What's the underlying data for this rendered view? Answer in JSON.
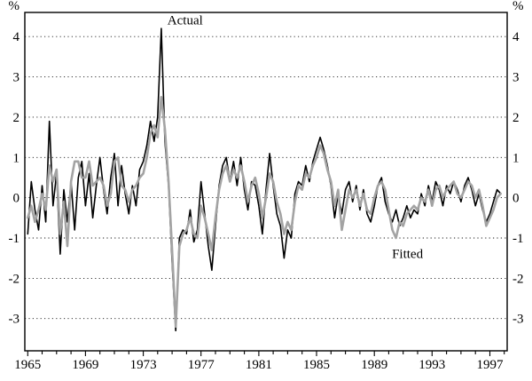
{
  "figure": {
    "y_unit_label_left": "%",
    "y_unit_label_right": "%"
  },
  "chart_data": {
    "type": "line",
    "title": "",
    "xlabel": "",
    "ylabel": "%",
    "y_unit_label": "%",
    "xlim": [
      1964.8,
      1998.2
    ],
    "ylim": [
      -3.8,
      4.6
    ],
    "grid": "dotted-horizontal",
    "legend_position": "inline-annotations",
    "y_gridlines": [
      4,
      3,
      2,
      1,
      0,
      -1,
      -2,
      -3
    ],
    "y_tick_labels": [
      "4",
      "3",
      "2",
      "1",
      "0",
      "-1",
      "-2",
      "-3"
    ],
    "x_tick_years": [
      1965,
      1969,
      1973,
      1977,
      1981,
      1985,
      1989,
      1993,
      1997
    ],
    "x_minor_tick_start": 1965,
    "x_minor_tick_end": 1998,
    "x_start": 1965.0,
    "x_step": 0.25,
    "annotations": [
      {
        "text": "Actual",
        "x": 1975.9,
        "y": 4.3
      },
      {
        "text": "Fitted",
        "x": 1991.3,
        "y": -1.5
      }
    ],
    "series": [
      {
        "name": "Actual",
        "color": "#000000",
        "width": 1.6,
        "values": [
          -0.9,
          0.4,
          -0.3,
          -0.8,
          0.3,
          -0.6,
          1.9,
          -0.2,
          0.6,
          -1.4,
          0.2,
          -0.6,
          0.4,
          -0.8,
          0.5,
          0.9,
          -0.2,
          0.6,
          -0.5,
          0.3,
          1.0,
          0.2,
          -0.4,
          0.5,
          1.1,
          -0.2,
          0.8,
          0.1,
          -0.4,
          0.3,
          -0.2,
          0.7,
          0.9,
          1.3,
          1.9,
          1.4,
          2.0,
          4.2,
          1.4,
          0.3,
          -1.6,
          -3.3,
          -1.0,
          -0.8,
          -0.9,
          -0.3,
          -1.1,
          -0.8,
          0.4,
          -0.4,
          -1.2,
          -1.8,
          -0.7,
          0.3,
          0.8,
          1.0,
          0.4,
          0.9,
          0.3,
          1.0,
          0.2,
          -0.3,
          0.4,
          0.3,
          -0.2,
          -0.9,
          0.2,
          1.1,
          0.3,
          -0.4,
          -0.7,
          -1.5,
          -0.8,
          -1.0,
          0.1,
          0.4,
          0.3,
          0.8,
          0.4,
          0.9,
          1.2,
          1.5,
          1.2,
          0.8,
          0.3,
          -0.5,
          0.1,
          -0.4,
          0.2,
          0.4,
          -0.1,
          0.3,
          -0.3,
          0.2,
          -0.4,
          -0.6,
          -0.2,
          0.3,
          0.5,
          -0.1,
          -0.4,
          -0.6,
          -0.3,
          -0.7,
          -0.5,
          -0.2,
          -0.5,
          -0.3,
          -0.4,
          0.1,
          -0.2,
          0.3,
          -0.1,
          0.4,
          0.2,
          -0.2,
          0.3,
          0.1,
          0.4,
          0.2,
          -0.1,
          0.3,
          0.5,
          0.2,
          -0.2,
          0.1,
          -0.3,
          -0.6,
          -0.4,
          -0.1,
          0.2,
          0.1
        ]
      },
      {
        "name": "Fitted",
        "color": "#a3a3a3",
        "width": 2.6,
        "values": [
          -0.5,
          -0.2,
          -0.6,
          -0.3,
          0.1,
          -0.3,
          0.8,
          0.4,
          0.7,
          -0.9,
          -0.1,
          -1.2,
          0.4,
          0.9,
          0.9,
          0.5,
          0.5,
          0.9,
          0.3,
          0.4,
          0.5,
          0.3,
          -0.2,
          0.1,
          0.9,
          1.0,
          0.3,
          0.2,
          -0.1,
          0.2,
          0.3,
          0.5,
          0.6,
          1.0,
          1.6,
          1.8,
          1.5,
          2.5,
          1.7,
          0.4,
          -1.3,
          -3.2,
          -1.2,
          -0.9,
          -0.8,
          -0.5,
          -0.9,
          -1.0,
          -0.2,
          -0.5,
          -0.9,
          -1.3,
          -0.5,
          0.2,
          0.6,
          0.8,
          0.4,
          0.7,
          0.5,
          0.8,
          0.4,
          -0.1,
          0.3,
          0.5,
          0.1,
          -0.5,
          0.0,
          0.6,
          0.4,
          -0.1,
          -0.4,
          -0.9,
          -0.6,
          -0.8,
          -0.1,
          0.3,
          0.2,
          0.6,
          0.5,
          0.8,
          1.0,
          1.3,
          1.1,
          0.7,
          0.4,
          -0.2,
          0.2,
          -0.8,
          -0.3,
          0.2,
          0.0,
          0.2,
          -0.2,
          0.1,
          -0.3,
          -0.4,
          0.0,
          0.3,
          0.4,
          0.2,
          -0.3,
          -0.8,
          -1.0,
          -0.6,
          -0.7,
          -0.4,
          -0.3,
          -0.2,
          -0.3,
          0.0,
          -0.1,
          0.2,
          -0.2,
          0.2,
          0.3,
          0.0,
          0.2,
          0.3,
          0.4,
          0.1,
          0.0,
          0.2,
          0.4,
          0.3,
          0.0,
          0.2,
          -0.2,
          -0.7,
          -0.5,
          -0.3,
          0.0,
          0.1
        ]
      }
    ]
  }
}
